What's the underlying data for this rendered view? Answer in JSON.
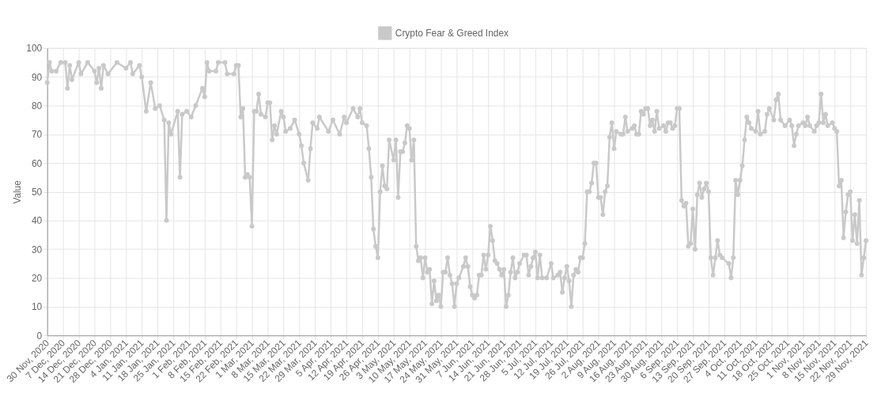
{
  "chart_data": {
    "type": "line",
    "ylabel": "Value",
    "legend": "top",
    "grid": true,
    "marker": "circle",
    "line_style": "solid",
    "ylim": [
      0,
      100
    ],
    "yticks": [
      0,
      10,
      20,
      30,
      40,
      50,
      60,
      70,
      80,
      90,
      100
    ],
    "xlim": [
      "2020-11-30",
      "2021-11-29"
    ],
    "xticks": [
      {
        "value": "2020-11-30",
        "label": "30 Nov, 2020"
      },
      {
        "value": "2020-12-07",
        "label": "7 Dec, 2020"
      },
      {
        "value": "2020-12-14",
        "label": "14 Dec, 2020"
      },
      {
        "value": "2020-12-21",
        "label": "21 Dec, 2020"
      },
      {
        "value": "2020-12-28",
        "label": "28 Dec, 2020"
      },
      {
        "value": "2021-01-04",
        "label": "4 Jan, 2021"
      },
      {
        "value": "2021-01-11",
        "label": "11 Jan, 2021"
      },
      {
        "value": "2021-01-18",
        "label": "18 Jan, 2021"
      },
      {
        "value": "2021-01-25",
        "label": "25 Jan, 2021"
      },
      {
        "value": "2021-02-01",
        "label": "1 Feb, 2021"
      },
      {
        "value": "2021-02-08",
        "label": "8 Feb, 2021"
      },
      {
        "value": "2021-02-15",
        "label": "15 Feb, 2021"
      },
      {
        "value": "2021-02-22",
        "label": "22 Feb, 2021"
      },
      {
        "value": "2021-03-01",
        "label": "1 Mar, 2021"
      },
      {
        "value": "2021-03-08",
        "label": "8 Mar, 2021"
      },
      {
        "value": "2021-03-15",
        "label": "15 Mar, 2021"
      },
      {
        "value": "2021-03-22",
        "label": "22 Mar, 2021"
      },
      {
        "value": "2021-03-29",
        "label": "29 Mar, 2021"
      },
      {
        "value": "2021-04-05",
        "label": "5 Apr, 2021"
      },
      {
        "value": "2021-04-12",
        "label": "12 Apr, 2021"
      },
      {
        "value": "2021-04-19",
        "label": "19 Apr, 2021"
      },
      {
        "value": "2021-04-26",
        "label": "26 Apr, 2021"
      },
      {
        "value": "2021-05-03",
        "label": "3 May, 2021"
      },
      {
        "value": "2021-05-10",
        "label": "10 May, 2021"
      },
      {
        "value": "2021-05-17",
        "label": "17 May, 2021"
      },
      {
        "value": "2021-05-24",
        "label": "24 May, 2021"
      },
      {
        "value": "2021-05-31",
        "label": "31 May, 2021"
      },
      {
        "value": "2021-06-07",
        "label": "7 Jun, 2021"
      },
      {
        "value": "2021-06-14",
        "label": "14 Jun, 2021"
      },
      {
        "value": "2021-06-21",
        "label": "21 Jun, 2021"
      },
      {
        "value": "2021-06-28",
        "label": "28 Jun, 2021"
      },
      {
        "value": "2021-07-05",
        "label": "5 Jul, 2021"
      },
      {
        "value": "2021-07-12",
        "label": "12 Jul, 2021"
      },
      {
        "value": "2021-07-19",
        "label": "19 Jul, 2021"
      },
      {
        "value": "2021-07-26",
        "label": "26 Jul, 2021"
      },
      {
        "value": "2021-08-02",
        "label": "2 Aug, 2021"
      },
      {
        "value": "2021-08-09",
        "label": "9 Aug, 2021"
      },
      {
        "value": "2021-08-16",
        "label": "16 Aug, 2021"
      },
      {
        "value": "2021-08-23",
        "label": "23 Aug, 2021"
      },
      {
        "value": "2021-08-30",
        "label": "30 Aug, 2021"
      },
      {
        "value": "2021-09-06",
        "label": "6 Sep, 2021"
      },
      {
        "value": "2021-09-13",
        "label": "13 Sep, 2021"
      },
      {
        "value": "2021-09-20",
        "label": "20 Sep, 2021"
      },
      {
        "value": "2021-09-27",
        "label": "27 Sep, 2021"
      },
      {
        "value": "2021-10-04",
        "label": "4 Oct, 2021"
      },
      {
        "value": "2021-10-11",
        "label": "11 Oct, 2021"
      },
      {
        "value": "2021-10-18",
        "label": "18 Oct, 2021"
      },
      {
        "value": "2021-10-25",
        "label": "25 Oct, 2021"
      },
      {
        "value": "2021-11-01",
        "label": "1 Nov, 2021"
      },
      {
        "value": "2021-11-08",
        "label": "8 Nov, 2021"
      },
      {
        "value": "2021-11-15",
        "label": "15 Nov, 2021"
      },
      {
        "value": "2021-11-22",
        "label": "22 Nov, 2021"
      },
      {
        "value": "2021-11-29",
        "label": "29 Nov, 2021"
      }
    ],
    "series": [
      {
        "name": "Crypto Fear & Greed Index",
        "color": "#c9c9c9",
        "x": [
          "2020-11-30",
          "2020-12-01",
          "2020-12-02",
          "2020-12-04",
          "2020-12-06",
          "2020-12-08",
          "2020-12-09",
          "2020-12-10",
          "2020-12-11",
          "2020-12-14",
          "2020-12-15",
          "2020-12-18",
          "2020-12-21",
          "2020-12-22",
          "2020-12-23",
          "2020-12-24",
          "2020-12-25",
          "2020-12-27",
          "2020-12-31",
          "2021-01-04",
          "2021-01-06",
          "2021-01-07",
          "2021-01-10",
          "2021-01-11",
          "2021-01-13",
          "2021-01-15",
          "2021-01-17",
          "2021-01-19",
          "2021-01-21",
          "2021-01-22",
          "2021-01-23",
          "2021-01-24",
          "2021-01-27",
          "2021-01-28",
          "2021-01-29",
          "2021-01-31",
          "2021-02-02",
          "2021-02-04",
          "2021-02-07",
          "2021-02-08",
          "2021-02-09",
          "2021-02-10",
          "2021-02-13",
          "2021-02-14",
          "2021-02-17",
          "2021-02-18",
          "2021-02-21",
          "2021-02-22",
          "2021-02-23",
          "2021-02-24",
          "2021-02-25",
          "2021-02-26",
          "2021-02-27",
          "2021-02-28",
          "2021-03-01",
          "2021-03-02",
          "2021-03-03",
          "2021-03-04",
          "2021-03-05",
          "2021-03-07",
          "2021-03-08",
          "2021-03-09",
          "2021-03-10",
          "2021-03-11",
          "2021-03-12",
          "2021-03-14",
          "2021-03-15",
          "2021-03-16",
          "2021-03-18",
          "2021-03-20",
          "2021-03-22",
          "2021-03-23",
          "2021-03-24",
          "2021-03-26",
          "2021-03-27",
          "2021-03-28",
          "2021-03-30",
          "2021-03-31",
          "2021-04-04",
          "2021-04-06",
          "2021-04-09",
          "2021-04-11",
          "2021-04-12",
          "2021-04-15",
          "2021-04-17",
          "2021-04-18",
          "2021-04-19",
          "2021-04-21",
          "2021-04-22",
          "2021-04-23",
          "2021-04-24",
          "2021-04-25",
          "2021-04-26",
          "2021-04-27",
          "2021-04-28",
          "2021-04-29",
          "2021-04-30",
          "2021-05-01",
          "2021-05-03",
          "2021-05-04",
          "2021-05-05",
          "2021-05-06",
          "2021-05-07",
          "2021-05-08",
          "2021-05-09",
          "2021-05-10",
          "2021-05-11",
          "2021-05-12",
          "2021-05-13",
          "2021-05-14",
          "2021-05-15",
          "2021-05-16",
          "2021-05-17",
          "2021-05-18",
          "2021-05-19",
          "2021-05-20",
          "2021-05-21",
          "2021-05-22",
          "2021-05-23",
          "2021-05-24",
          "2021-05-25",
          "2021-05-26",
          "2021-05-27",
          "2021-05-28",
          "2021-05-29",
          "2021-05-30",
          "2021-05-31",
          "2021-06-01",
          "2021-06-03",
          "2021-06-04",
          "2021-06-05",
          "2021-06-06",
          "2021-06-07",
          "2021-06-08",
          "2021-06-09",
          "2021-06-10",
          "2021-06-11",
          "2021-06-12",
          "2021-06-13",
          "2021-06-14",
          "2021-06-15",
          "2021-06-16",
          "2021-06-17",
          "2021-06-18",
          "2021-06-19",
          "2021-06-20",
          "2021-06-21",
          "2021-06-22",
          "2021-06-23",
          "2021-06-24",
          "2021-06-25",
          "2021-06-26",
          "2021-06-27",
          "2021-06-28",
          "2021-06-30",
          "2021-07-01",
          "2021-07-02",
          "2021-07-03",
          "2021-07-04",
          "2021-07-05",
          "2021-07-06",
          "2021-07-07",
          "2021-07-08",
          "2021-07-10",
          "2021-07-12",
          "2021-07-13",
          "2021-07-15",
          "2021-07-16",
          "2021-07-17",
          "2021-07-18",
          "2021-07-19",
          "2021-07-20",
          "2021-07-21",
          "2021-07-22",
          "2021-07-23",
          "2021-07-24",
          "2021-07-25",
          "2021-07-26",
          "2021-07-27",
          "2021-07-28",
          "2021-07-29",
          "2021-07-30",
          "2021-07-31",
          "2021-08-01",
          "2021-08-02",
          "2021-08-03",
          "2021-08-04",
          "2021-08-05",
          "2021-08-06",
          "2021-08-07",
          "2021-08-08",
          "2021-08-09",
          "2021-08-10",
          "2021-08-12",
          "2021-08-13",
          "2021-08-14",
          "2021-08-15",
          "2021-08-17",
          "2021-08-18",
          "2021-08-19",
          "2021-08-20",
          "2021-08-21",
          "2021-08-22",
          "2021-08-23",
          "2021-08-24",
          "2021-08-25",
          "2021-08-26",
          "2021-08-27",
          "2021-08-28",
          "2021-08-29",
          "2021-08-31",
          "2021-09-01",
          "2021-09-02",
          "2021-09-03",
          "2021-09-04",
          "2021-09-05",
          "2021-09-06",
          "2021-09-07",
          "2021-09-08",
          "2021-09-09",
          "2021-09-10",
          "2021-09-11",
          "2021-09-12",
          "2021-09-13",
          "2021-09-14",
          "2021-09-15",
          "2021-09-16",
          "2021-09-17",
          "2021-09-18",
          "2021-09-19",
          "2021-09-20",
          "2021-09-21",
          "2021-09-22",
          "2021-09-23",
          "2021-09-24",
          "2021-09-25",
          "2021-09-26",
          "2021-09-29",
          "2021-09-30",
          "2021-10-01",
          "2021-10-02",
          "2021-10-03",
          "2021-10-04",
          "2021-10-05",
          "2021-10-06",
          "2021-10-07",
          "2021-10-08",
          "2021-10-09",
          "2021-10-11",
          "2021-10-12",
          "2021-10-13",
          "2021-10-15",
          "2021-10-16",
          "2021-10-17",
          "2021-10-19",
          "2021-10-20",
          "2021-10-21",
          "2021-10-22",
          "2021-10-24",
          "2021-10-26",
          "2021-10-27",
          "2021-10-28",
          "2021-10-29",
          "2021-10-30",
          "2021-11-01",
          "2021-11-02",
          "2021-11-03",
          "2021-11-04",
          "2021-11-06",
          "2021-11-07",
          "2021-11-08",
          "2021-11-09",
          "2021-11-10",
          "2021-11-11",
          "2021-11-12",
          "2021-11-14",
          "2021-11-15",
          "2021-11-16",
          "2021-11-17",
          "2021-11-18",
          "2021-11-19",
          "2021-11-20",
          "2021-11-21",
          "2021-11-22",
          "2021-11-23",
          "2021-11-24",
          "2021-11-25",
          "2021-11-26",
          "2021-11-27",
          "2021-11-28",
          "2021-11-29"
        ],
        "values": [
          88,
          95,
          92,
          92,
          95,
          95,
          86,
          94,
          89,
          95,
          91,
          95,
          92,
          88,
          93,
          86,
          94,
          91,
          95,
          93,
          95,
          91,
          94,
          90,
          78,
          88,
          79,
          80,
          75,
          40,
          74,
          70,
          78,
          55,
          77,
          78,
          76,
          80,
          86,
          83,
          95,
          92,
          92,
          95,
          95,
          91,
          91,
          94,
          94,
          76,
          79,
          55,
          56,
          55,
          38,
          78,
          78,
          84,
          77,
          76,
          81,
          81,
          68,
          73,
          70,
          78,
          76,
          71,
          72,
          75,
          70,
          66,
          60,
          54,
          65,
          74,
          72,
          76,
          71,
          75,
          70,
          76,
          74,
          79,
          76,
          79,
          74,
          73,
          65,
          55,
          37,
          31,
          27,
          50,
          59,
          52,
          51,
          68,
          61,
          68,
          48,
          64,
          64,
          67,
          73,
          72,
          61,
          68,
          31,
          26,
          27,
          20,
          27,
          22,
          23,
          11,
          19,
          12,
          14,
          10,
          22,
          22,
          27,
          21,
          18,
          10,
          18,
          20,
          24,
          27,
          24,
          17,
          14,
          13,
          14,
          21,
          21,
          28,
          23,
          28,
          38,
          33,
          26,
          25,
          23,
          21,
          23,
          10,
          14,
          22,
          27,
          20,
          22,
          25,
          28,
          28,
          21,
          24,
          27,
          29,
          20,
          28,
          20,
          20,
          25,
          20,
          21,
          22,
          15,
          20,
          24,
          19,
          10,
          21,
          23,
          22,
          27,
          27,
          32,
          50,
          50,
          53,
          60,
          60,
          48,
          48,
          42,
          50,
          52,
          69,
          74,
          65,
          71,
          70,
          70,
          76,
          71,
          72,
          73,
          70,
          70,
          78,
          77,
          79,
          79,
          73,
          75,
          71,
          78,
          72,
          73,
          71,
          74,
          74,
          72,
          73,
          79,
          79,
          47,
          45,
          46,
          31,
          32,
          44,
          30,
          49,
          53,
          48,
          51,
          53,
          50,
          27,
          21,
          27,
          33,
          28,
          27,
          25,
          20,
          27,
          54,
          49,
          54,
          59,
          68,
          76,
          74,
          72,
          71,
          78,
          70,
          71,
          77,
          79,
          75,
          82,
          84,
          75,
          73,
          75,
          73,
          66,
          70,
          73,
          74,
          73,
          76,
          73,
          71,
          73,
          74,
          84,
          74,
          77,
          73,
          74,
          72,
          71,
          52,
          54,
          34,
          43,
          49,
          50,
          33,
          42,
          32,
          47,
          21,
          27,
          33
        ]
      }
    ]
  }
}
